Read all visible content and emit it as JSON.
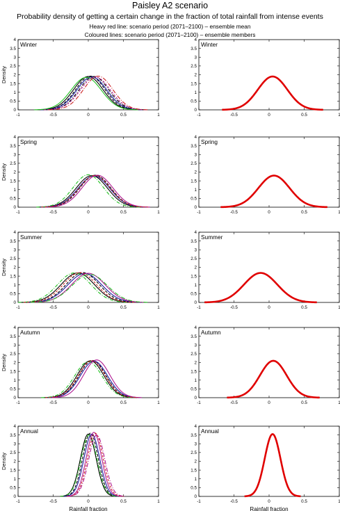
{
  "figure": {
    "title": "Paisley A2 scenario",
    "subtitle": "Probability density of getting a certain change in the fraction of total rainfall from intense events",
    "legend_line_1": "Heavy red line: scenario period (2071–2100) – ensemble mean",
    "legend_line_2": "Coloured lines: scenario period (2071–2100) – ensemble members"
  },
  "chart_data": [
    {
      "type": "line",
      "panel": "ensemble members",
      "label": "Winter",
      "ylabel": "Density",
      "xlabel": "",
      "xlim": [
        -1,
        1
      ],
      "ylim": [
        0,
        4
      ],
      "x_ticks": [
        "-1",
        "-0.5",
        "0",
        "0.5",
        "1"
      ],
      "y_ticks": [
        "0",
        "0.5",
        "1",
        "1.5",
        "2",
        "2.5",
        "3",
        "3.5",
        "4"
      ],
      "series": [
        {
          "color": "#000000",
          "mean": 0.0,
          "peak": 1.9
        },
        {
          "color": "#000000",
          "mean": 0.03,
          "peak": 1.92
        },
        {
          "color": "#1a1aa0",
          "mean": 0.05,
          "peak": 1.88
        },
        {
          "color": "#000000",
          "mean": 0.08,
          "peak": 1.9
        },
        {
          "color": "#22c022",
          "mean": -0.03,
          "peak": 1.85
        },
        {
          "color": "#b01890",
          "mean": 0.1,
          "peak": 1.87
        },
        {
          "color": "#cc2222",
          "mean": 0.14,
          "peak": 1.92
        }
      ]
    },
    {
      "type": "line",
      "panel": "ensemble mean",
      "label": "Winter",
      "ylabel": "",
      "xlabel": "",
      "xlim": [
        -1,
        1
      ],
      "ylim": [
        0,
        4
      ],
      "x_ticks": [
        "-1",
        "-0.5",
        "0",
        "0.5",
        "1"
      ],
      "y_ticks": [
        "0",
        "0.5",
        "1",
        "1.5",
        "2",
        "2.5",
        "3",
        "3.5",
        "4"
      ],
      "series": [
        {
          "color": "#e00000",
          "mean": 0.05,
          "peak": 1.9
        }
      ]
    },
    {
      "type": "line",
      "panel": "ensemble members",
      "label": "Spring",
      "ylabel": "Density",
      "xlabel": "",
      "xlim": [
        -1,
        1
      ],
      "ylim": [
        0,
        4
      ],
      "x_ticks": [
        "-1",
        "-0.5",
        "0",
        "0.5",
        "1"
      ],
      "y_ticks": [
        "0",
        "0.5",
        "1",
        "1.5",
        "2",
        "2.5",
        "3",
        "3.5",
        "4"
      ],
      "series": [
        {
          "color": "#000000",
          "mean": 0.05,
          "peak": 1.8
        },
        {
          "color": "#000000",
          "mean": 0.1,
          "peak": 1.82
        },
        {
          "color": "#1a1aa0",
          "mean": 0.08,
          "peak": 1.78
        },
        {
          "color": "#22c022",
          "mean": 0.0,
          "peak": 1.85
        },
        {
          "color": "#b01890",
          "mean": 0.13,
          "peak": 1.82
        },
        {
          "color": "#cc2222",
          "mean": 0.09,
          "peak": 1.8
        }
      ]
    },
    {
      "type": "line",
      "panel": "ensemble mean",
      "label": "Spring",
      "ylabel": "",
      "xlabel": "",
      "xlim": [
        -1,
        1
      ],
      "ylim": [
        0,
        4
      ],
      "x_ticks": [
        "-1",
        "-0.5",
        "0",
        "0.5",
        "1"
      ],
      "y_ticks": [
        "0",
        "0.5",
        "1",
        "1.5",
        "2",
        "2.5",
        "3",
        "3.5",
        "4"
      ],
      "series": [
        {
          "color": "#e00000",
          "mean": 0.07,
          "peak": 1.8
        }
      ]
    },
    {
      "type": "line",
      "panel": "ensemble members",
      "label": "Summer",
      "ylabel": "Density",
      "xlabel": "",
      "xlim": [
        -1,
        1
      ],
      "ylim": [
        0,
        4
      ],
      "x_ticks": [
        "-1",
        "-0.5",
        "0",
        "0.5",
        "1"
      ],
      "y_ticks": [
        "0",
        "0.5",
        "1",
        "1.5",
        "2",
        "2.5",
        "3",
        "3.5",
        "4"
      ],
      "series": [
        {
          "color": "#000000",
          "mean": -0.15,
          "peak": 1.68
        },
        {
          "color": "#000000",
          "mean": -0.08,
          "peak": 1.7
        },
        {
          "color": "#1a1aa0",
          "mean": -0.05,
          "peak": 1.65
        },
        {
          "color": "#22c022",
          "mean": -0.2,
          "peak": 1.68
        },
        {
          "color": "#b01890",
          "mean": 0.0,
          "peak": 1.66
        },
        {
          "color": "#cc2222",
          "mean": -0.12,
          "peak": 1.7
        },
        {
          "color": "#22c022",
          "mean": 0.02,
          "peak": 1.6
        }
      ]
    },
    {
      "type": "line",
      "panel": "ensemble mean",
      "label": "Summer",
      "ylabel": "",
      "xlabel": "",
      "xlim": [
        -1,
        1
      ],
      "ylim": [
        0,
        4
      ],
      "x_ticks": [
        "-1",
        "-0.5",
        "0",
        "0.5",
        "1"
      ],
      "y_ticks": [
        "0",
        "0.5",
        "1",
        "1.5",
        "2",
        "2.5",
        "3",
        "3.5",
        "4"
      ],
      "series": [
        {
          "color": "#e00000",
          "mean": -0.12,
          "peak": 1.68
        }
      ]
    },
    {
      "type": "line",
      "panel": "ensemble members",
      "label": "Autumn",
      "ylabel": "Density",
      "xlabel": "",
      "xlim": [
        -1,
        1
      ],
      "ylim": [
        0,
        4
      ],
      "x_ticks": [
        "-1",
        "-0.5",
        "0",
        "0.5",
        "1"
      ],
      "y_ticks": [
        "0",
        "0.5",
        "1",
        "1.5",
        "2",
        "2.5",
        "3",
        "3.5",
        "4"
      ],
      "series": [
        {
          "color": "#000000",
          "mean": 0.03,
          "peak": 2.1
        },
        {
          "color": "#000000",
          "mean": 0.06,
          "peak": 2.12
        },
        {
          "color": "#1a1aa0",
          "mean": 0.08,
          "peak": 2.08
        },
        {
          "color": "#22c022",
          "mean": 0.0,
          "peak": 2.05
        },
        {
          "color": "#b01890",
          "mean": 0.12,
          "peak": 2.15
        },
        {
          "color": "#cc2222",
          "mean": 0.05,
          "peak": 2.1
        }
      ]
    },
    {
      "type": "line",
      "panel": "ensemble mean",
      "label": "Autumn",
      "ylabel": "",
      "xlabel": "",
      "xlim": [
        -1,
        1
      ],
      "ylim": [
        0,
        4
      ],
      "x_ticks": [
        "-1",
        "-0.5",
        "0",
        "0.5",
        "1"
      ],
      "y_ticks": [
        "0",
        "0.5",
        "1",
        "1.5",
        "2",
        "2.5",
        "3",
        "3.5",
        "4"
      ],
      "series": [
        {
          "color": "#e00000",
          "mean": 0.06,
          "peak": 2.1
        }
      ]
    },
    {
      "type": "line",
      "panel": "ensemble members",
      "label": "Annual",
      "ylabel": "Density",
      "xlabel": "Rainfall fraction",
      "xlim": [
        -1,
        1
      ],
      "ylim": [
        0,
        4
      ],
      "x_ticks": [
        "-1",
        "-0.5",
        "0",
        "0.5",
        "1"
      ],
      "y_ticks": [
        "0",
        "0.5",
        "1",
        "1.5",
        "2",
        "2.5",
        "3",
        "3.5",
        "4"
      ],
      "series": [
        {
          "color": "#000000",
          "mean": 0.0,
          "peak": 3.55
        },
        {
          "color": "#000000",
          "mean": 0.03,
          "peak": 3.6
        },
        {
          "color": "#1a1aa0",
          "mean": 0.05,
          "peak": 3.55
        },
        {
          "color": "#22c022",
          "mean": 0.01,
          "peak": 3.5
        },
        {
          "color": "#b01890",
          "mean": 0.08,
          "peak": 3.65
        },
        {
          "color": "#cc2222",
          "mean": 0.1,
          "peak": 3.6
        },
        {
          "color": "#b01890",
          "mean": 0.12,
          "peak": 3.5
        }
      ]
    },
    {
      "type": "line",
      "panel": "ensemble mean",
      "label": "Annual",
      "ylabel": "",
      "xlabel": "Rainfall fraction",
      "xlim": [
        -1,
        1
      ],
      "ylim": [
        0,
        4
      ],
      "x_ticks": [
        "-1",
        "-0.5",
        "0",
        "0.5",
        "1"
      ],
      "y_ticks": [
        "0",
        "0.5",
        "1",
        "1.5",
        "2",
        "2.5",
        "3",
        "3.5",
        "4"
      ],
      "series": [
        {
          "color": "#e00000",
          "mean": 0.05,
          "peak": 3.55
        }
      ]
    }
  ]
}
